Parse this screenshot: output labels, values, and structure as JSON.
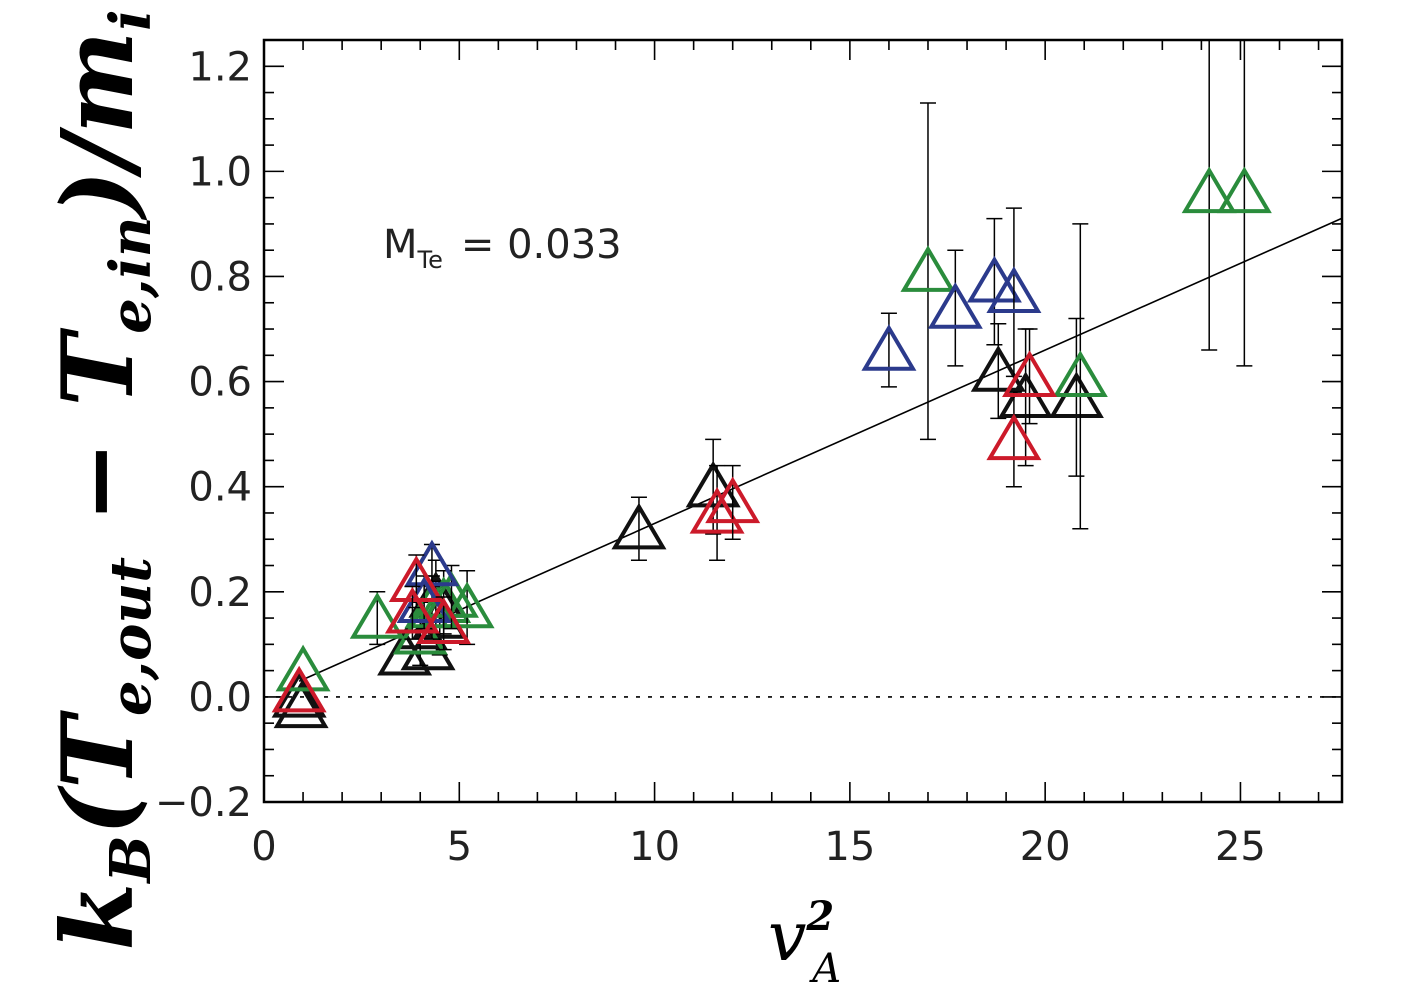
{
  "chart_data": {
    "type": "scatter",
    "title": "",
    "xlabel": "v_A^2",
    "ylabel": "k_B(T_e,out − T_e,in)/m_i",
    "xlim": [
      0,
      27.6
    ],
    "ylim": [
      -0.2,
      1.25
    ],
    "x_ticks": [
      "0",
      "5",
      "10",
      "15",
      "20",
      "25"
    ],
    "y_ticks": [
      "−0.2",
      "0.0",
      "0.2",
      "0.4",
      "0.6",
      "0.8",
      "1.0",
      "1.2"
    ],
    "x_tick_values": [
      0,
      5,
      10,
      15,
      20,
      25
    ],
    "y_tick_values": [
      -0.2,
      0.0,
      0.2,
      0.4,
      0.6,
      0.8,
      1.0,
      1.2
    ],
    "annotation": {
      "text_main": "M",
      "text_sub": "Te",
      "text_value": "=  0.033"
    },
    "fit_line": {
      "slope": 0.033,
      "intercept": 0.0
    },
    "zero_line": {
      "y": 0.0,
      "style": "dotted"
    },
    "grid": false,
    "colors": {
      "black": "#111111",
      "green": "#2a8c3c",
      "blue": "#2b3a8c",
      "red": "#cc1a2a"
    },
    "series": [
      {
        "color_key": "black",
        "points": [
          {
            "x": 0.9,
            "y": 0.0,
            "err": null
          },
          {
            "x": 0.95,
            "y": -0.02,
            "err": null
          },
          {
            "x": 3.6,
            "y": 0.08,
            "err": null
          },
          {
            "x": 4.2,
            "y": 0.09,
            "err": null
          },
          {
            "x": 4.0,
            "y": 0.13,
            "err": null
          },
          {
            "x": 4.4,
            "y": 0.19,
            "err": 0.07
          },
          {
            "x": 4.5,
            "y": 0.15,
            "err": 0.07
          },
          {
            "x": 9.6,
            "y": 0.32,
            "err": 0.06
          },
          {
            "x": 11.5,
            "y": 0.4,
            "err": 0.09
          },
          {
            "x": 18.8,
            "y": 0.62,
            "err": 0.09
          },
          {
            "x": 19.5,
            "y": 0.57,
            "err": 0.13
          },
          {
            "x": 20.8,
            "y": 0.57,
            "err": 0.15
          }
        ]
      },
      {
        "color_key": "green",
        "points": [
          {
            "x": 1.0,
            "y": 0.05,
            "err": null
          },
          {
            "x": 2.9,
            "y": 0.15,
            "err": 0.05
          },
          {
            "x": 4.0,
            "y": 0.12,
            "err": 0.06
          },
          {
            "x": 4.3,
            "y": 0.17,
            "err": 0.06
          },
          {
            "x": 4.6,
            "y": 0.18,
            "err": 0.06
          },
          {
            "x": 5.2,
            "y": 0.17,
            "err": 0.07
          },
          {
            "x": 4.8,
            "y": 0.19,
            "err": 0.06
          },
          {
            "x": 17.0,
            "y": 0.81,
            "err": 0.32
          },
          {
            "x": 20.9,
            "y": 0.61,
            "err": 0.29
          },
          {
            "x": 24.2,
            "y": 0.96,
            "err": 0.3
          },
          {
            "x": 25.1,
            "y": 0.96,
            "err": 0.33
          }
        ]
      },
      {
        "color_key": "blue",
        "points": [
          {
            "x": 4.3,
            "y": 0.25,
            "err": 0.04
          },
          {
            "x": 4.1,
            "y": 0.18,
            "err": 0.05
          },
          {
            "x": 16.0,
            "y": 0.66,
            "err": 0.07
          },
          {
            "x": 17.7,
            "y": 0.74,
            "err": 0.11
          },
          {
            "x": 18.7,
            "y": 0.79,
            "err": 0.12
          },
          {
            "x": 19.2,
            "y": 0.77,
            "err": 0.16
          }
        ]
      },
      {
        "color_key": "red",
        "points": [
          {
            "x": 0.9,
            "y": 0.01,
            "err": null
          },
          {
            "x": 3.9,
            "y": 0.22,
            "err": 0.05
          },
          {
            "x": 3.8,
            "y": 0.16,
            "err": 0.05
          },
          {
            "x": 4.6,
            "y": 0.14,
            "err": 0.05
          },
          {
            "x": 11.6,
            "y": 0.35,
            "err": 0.09
          },
          {
            "x": 12.0,
            "y": 0.37,
            "err": 0.07
          },
          {
            "x": 19.2,
            "y": 0.49,
            "err": 0.09
          },
          {
            "x": 19.6,
            "y": 0.61,
            "err": 0.09
          }
        ]
      }
    ]
  }
}
